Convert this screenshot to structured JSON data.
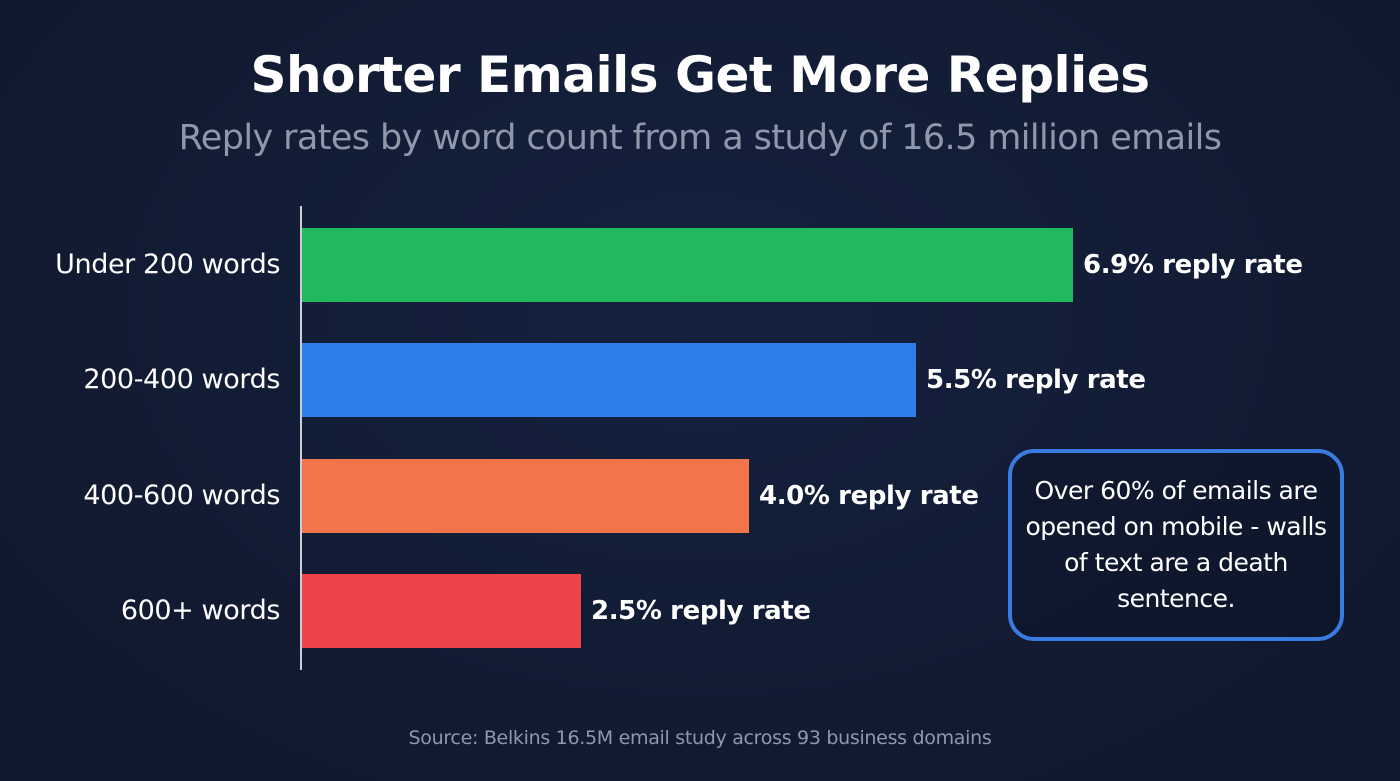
{
  "header": {
    "title": "Shorter Emails Get More Replies",
    "subtitle": "Reply rates by word count from a study of 16.5 million emails"
  },
  "bars": [
    {
      "label": "Under 200 words",
      "value": 6.9,
      "value_label": "6.9% reply rate",
      "color": "#22b85e"
    },
    {
      "label": "200-400 words",
      "value": 5.5,
      "value_label": "5.5% reply rate",
      "color": "#2f7de9"
    },
    {
      "label": "400-600 words",
      "value": 4.0,
      "value_label": "4.0% reply rate",
      "color": "#f2744a"
    },
    {
      "label": "600+ words",
      "value": 2.5,
      "value_label": "2.5% reply rate",
      "color": "#ee4449"
    }
  ],
  "callout": {
    "text": "Over 60% of emails are opened on mobile - walls of text are a death sentence.",
    "border_color": "#3a7be0"
  },
  "footer": {
    "source": "Source: Belkins 16.5M email study across 93 business domains"
  },
  "chart_data": {
    "type": "bar",
    "orientation": "horizontal",
    "title": "Shorter Emails Get More Replies",
    "subtitle": "Reply rates by word count from a study of 16.5 million emails",
    "categories": [
      "Under 200 words",
      "200-400 words",
      "400-600 words",
      "600+ words"
    ],
    "values": [
      6.9,
      5.5,
      4.0,
      2.5
    ],
    "data_labels": [
      "6.9% reply rate",
      "5.5% reply rate",
      "4.0% reply rate",
      "2.5% reply rate"
    ],
    "colors": [
      "#22b85e",
      "#2f7de9",
      "#f2744a",
      "#ee4449"
    ],
    "xlabel": "",
    "ylabel": "",
    "unit": "% reply rate",
    "xlim": [
      0,
      7
    ],
    "grid": false,
    "legend": null,
    "annotations": [
      "Over 60% of emails are opened on mobile - walls of text are a death sentence."
    ],
    "source": "Source: Belkins 16.5M email study across 93 business domains"
  }
}
